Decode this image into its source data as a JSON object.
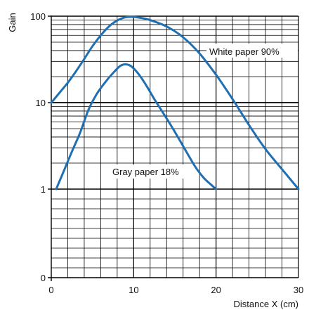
{
  "chart_data": {
    "type": "line",
    "title": "",
    "xlabel": "Distance  X (cm)",
    "ylabel": "Gain",
    "xlim": [
      0,
      30
    ],
    "x_ticks": [
      0,
      10,
      20,
      30
    ],
    "y_scale": "log",
    "y_ticks": [
      "100",
      "10",
      "1",
      "0"
    ],
    "grid": true,
    "series": [
      {
        "name": "White paper 90%",
        "color": "#1f6fb2",
        "x": [
          0,
          1,
          2,
          3,
          4,
          5,
          6,
          7,
          8,
          9,
          10,
          11,
          12,
          14,
          16,
          18,
          20,
          22,
          24,
          26,
          28,
          30
        ],
        "y": [
          10,
          13,
          17,
          23,
          32,
          45,
          60,
          76,
          89,
          97,
          98,
          95,
          90,
          76,
          57,
          37,
          21,
          11,
          5.5,
          2.9,
          1.7,
          1
        ]
      },
      {
        "name": "Gray paper 18%",
        "color": "#1f6fb2",
        "x": [
          0.6,
          1.5,
          2.5,
          3.5,
          4.5,
          5.5,
          6.5,
          7.5,
          8.5,
          9.5,
          10.5,
          11.5,
          12.5,
          13.5,
          14.5,
          15.5,
          16.5,
          17.5,
          18.5,
          19.5,
          20
        ],
        "y": [
          1,
          1.6,
          2.7,
          4.5,
          8.2,
          12.5,
          17,
          22,
          27,
          27,
          22,
          16,
          11,
          7.8,
          5.5,
          3.8,
          2.6,
          1.8,
          1.35,
          1.1,
          1
        ]
      }
    ]
  }
}
